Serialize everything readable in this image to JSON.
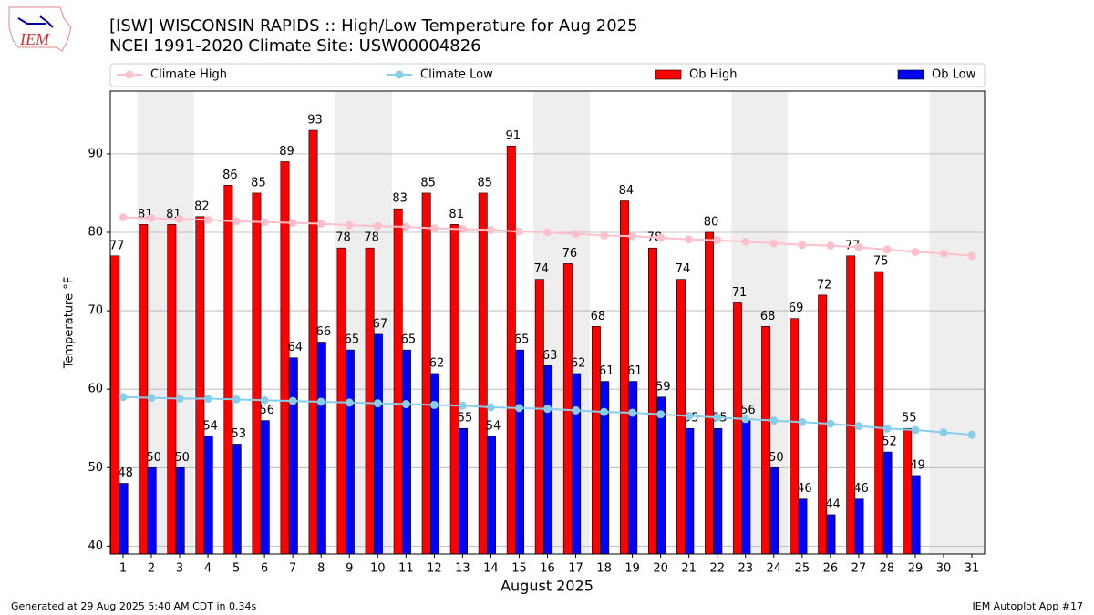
{
  "logo": "IEM",
  "footer_left": "Generated at 29 Aug 2025 5:40 AM CDT in 0.34s",
  "footer_right": "IEM Autoplot App #17",
  "chart_data": {
    "type": "bar",
    "title": "[ISW] WISCONSIN RAPIDS :: High/Low Temperature for Aug 2025",
    "subtitle": "NCEI 1991-2020 Climate Site: USW00004826",
    "xlabel": "August 2025",
    "ylabel": "Temperature °F",
    "x": [
      1,
      2,
      3,
      4,
      5,
      6,
      7,
      8,
      9,
      10,
      11,
      12,
      13,
      14,
      15,
      16,
      17,
      18,
      19,
      20,
      21,
      22,
      23,
      24,
      25,
      26,
      27,
      28,
      29,
      30,
      31
    ],
    "xticks": [
      1,
      2,
      3,
      4,
      5,
      6,
      7,
      8,
      9,
      10,
      11,
      12,
      13,
      14,
      15,
      16,
      17,
      18,
      19,
      20,
      21,
      22,
      23,
      24,
      25,
      26,
      27,
      28,
      29,
      30,
      31
    ],
    "xlim": [
      0.55,
      31.45
    ],
    "ylim": [
      39,
      98
    ],
    "yticks": [
      40,
      50,
      60,
      70,
      80,
      90
    ],
    "grid": true,
    "legend": "top",
    "series": [
      {
        "name": "Climate High",
        "kind": "line",
        "color": "#ffc0cb",
        "values": [
          81.9,
          81.8,
          81.7,
          81.6,
          81.4,
          81.3,
          81.2,
          81.1,
          80.9,
          80.8,
          80.7,
          80.5,
          80.4,
          80.3,
          80.1,
          80.0,
          79.8,
          79.6,
          79.5,
          79.3,
          79.1,
          79.0,
          78.8,
          78.6,
          78.4,
          78.3,
          78.1,
          77.8,
          77.5,
          77.3,
          77.0
        ]
      },
      {
        "name": "Climate Low",
        "kind": "line",
        "color": "#87ceeb",
        "values": [
          59.0,
          58.9,
          58.8,
          58.8,
          58.7,
          58.6,
          58.5,
          58.4,
          58.3,
          58.2,
          58.1,
          58.0,
          57.9,
          57.7,
          57.6,
          57.5,
          57.3,
          57.1,
          57.0,
          56.8,
          56.6,
          56.4,
          56.2,
          56.0,
          55.8,
          55.6,
          55.3,
          55.0,
          54.8,
          54.5,
          54.2
        ]
      },
      {
        "name": "Ob High",
        "kind": "bar",
        "color": "#ff0000",
        "values": [
          77,
          81,
          81,
          82,
          86,
          85,
          89,
          93,
          78,
          78,
          83,
          85,
          81,
          85,
          91,
          74,
          76,
          68,
          84,
          78,
          74,
          80,
          71,
          68,
          69,
          72,
          77,
          75,
          55,
          null,
          null
        ]
      },
      {
        "name": "Ob Low",
        "kind": "bar",
        "color": "#0000ff",
        "values": [
          48,
          50,
          50,
          54,
          53,
          56,
          64,
          66,
          65,
          67,
          65,
          62,
          55,
          54,
          65,
          63,
          62,
          61,
          61,
          59,
          55,
          55,
          56,
          50,
          46,
          44,
          46,
          52,
          49,
          null,
          null
        ]
      }
    ]
  }
}
